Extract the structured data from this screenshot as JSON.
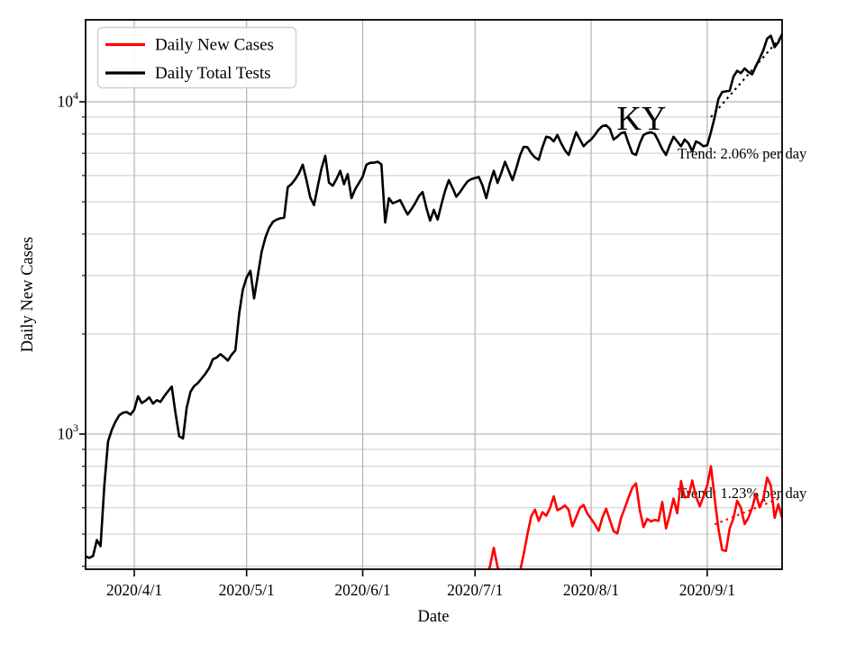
{
  "figure": {
    "background": "#ffffff"
  },
  "legend": {
    "items": [
      {
        "label": "Daily New Cases",
        "color": "#ff0000"
      },
      {
        "label": "Daily Total Tests",
        "color": "#000000"
      }
    ]
  },
  "chart_data": {
    "type": "line",
    "title": "",
    "xlabel": "Date",
    "ylabel": "Daily New Cases",
    "yscale": "log",
    "grid": true,
    "legend_position": "upper-left",
    "ylim": [
      392,
      17650
    ],
    "xlim": [
      "2020-03-19",
      "2020-09-21"
    ],
    "x_ticks": [
      {
        "date": "2020-04-01",
        "label": "2020/4/1"
      },
      {
        "date": "2020-05-01",
        "label": "2020/5/1"
      },
      {
        "date": "2020-06-01",
        "label": "2020/6/1"
      },
      {
        "date": "2020-07-01",
        "label": "2020/7/1"
      },
      {
        "date": "2020-08-01",
        "label": "2020/8/1"
      },
      {
        "date": "2020-09-01",
        "label": "2020/9/1"
      }
    ],
    "y_ticks": [
      {
        "value": 1000,
        "exponent": 3
      },
      {
        "value": 10000,
        "exponent": 4
      }
    ],
    "annotations": {
      "state_label": {
        "text": "KY"
      },
      "tests_trend": {
        "text": "Trend: 2.06% per day"
      },
      "cases_trend": {
        "text": "Trend: 1.23% per day"
      }
    },
    "trend_lines": [
      {
        "name": "tests-trend",
        "color": "#000000",
        "style": "dotted",
        "rate": "2.06% per day",
        "points": [
          [
            "2020-09-02",
            9000
          ],
          [
            "2020-09-21",
            15800
          ]
        ]
      },
      {
        "name": "cases-trend",
        "color": "#ff0000",
        "style": "dotted",
        "rate": "1.23% per day",
        "points": [
          [
            "2020-09-03",
            535
          ],
          [
            "2020-09-21",
            645
          ]
        ]
      }
    ],
    "series": [
      {
        "name": "Daily New Cases",
        "color": "#ff0000",
        "start": "2020-07-04",
        "values": [
          372,
          400,
          455,
          398,
          370,
          378,
          392,
          384,
          370,
          386,
          435,
          500,
          566,
          592,
          548,
          582,
          568,
          598,
          650,
          590,
          598,
          610,
          592,
          528,
          562,
          600,
          612,
          576,
          556,
          535,
          512,
          560,
          596,
          552,
          510,
          502,
          560,
          600,
          645,
          690,
          710,
          590,
          525,
          556,
          546,
          552,
          548,
          625,
          520,
          572,
          640,
          578,
          722,
          645,
          648,
          725,
          650,
          606,
          650,
          700,
          800,
          640,
          520,
          448,
          445,
          520,
          558,
          630,
          600,
          536,
          560,
          600,
          660,
          602,
          640,
          740,
          700,
          560,
          615,
          560
        ]
      },
      {
        "name": "Daily Total Tests",
        "color": "#000000",
        "start": "2020-03-19",
        "values": [
          428,
          424,
          430,
          480,
          460,
          700,
          950,
          1030,
          1090,
          1140,
          1160,
          1165,
          1145,
          1185,
          1300,
          1240,
          1260,
          1290,
          1235,
          1265,
          1250,
          1300,
          1345,
          1390,
          1160,
          985,
          970,
          1200,
          1340,
          1395,
          1425,
          1470,
          1520,
          1580,
          1680,
          1700,
          1740,
          1705,
          1665,
          1735,
          1785,
          2300,
          2720,
          2960,
          3100,
          2560,
          3010,
          3530,
          3900,
          4170,
          4350,
          4420,
          4460,
          4480,
          5540,
          5660,
          5850,
          6100,
          6470,
          5800,
          5150,
          4890,
          5580,
          6300,
          6880,
          5710,
          5590,
          5850,
          6200,
          5650,
          6060,
          5130,
          5460,
          5700,
          5950,
          6470,
          6550,
          6560,
          6600,
          6480,
          4330,
          5130,
          4950,
          5000,
          5060,
          4800,
          4580,
          4750,
          4950,
          5200,
          5350,
          4800,
          4390,
          4730,
          4420,
          4900,
          5400,
          5810,
          5500,
          5180,
          5350,
          5560,
          5760,
          5850,
          5900,
          5940,
          5600,
          5130,
          5700,
          6200,
          5700,
          6100,
          6600,
          6200,
          5810,
          6300,
          6900,
          7320,
          7300,
          7000,
          6800,
          6690,
          7300,
          7850,
          7800,
          7600,
          7950,
          7500,
          7150,
          6920,
          7500,
          8100,
          7700,
          7350,
          7550,
          7700,
          7950,
          8250,
          8450,
          8500,
          8300,
          7700,
          7850,
          8050,
          8100,
          7500,
          7000,
          6920,
          7500,
          7950,
          8050,
          8100,
          8000,
          7600,
          7200,
          6920,
          7400,
          7850,
          7600,
          7350,
          7700,
          7500,
          7100,
          7600,
          7500,
          7350,
          7400,
          8100,
          9000,
          10200,
          10700,
          10750,
          10800,
          11900,
          12400,
          12200,
          12600,
          12300,
          12100,
          12800,
          13500,
          14300,
          15500,
          15800,
          14600,
          15100,
          16000
        ]
      }
    ]
  }
}
